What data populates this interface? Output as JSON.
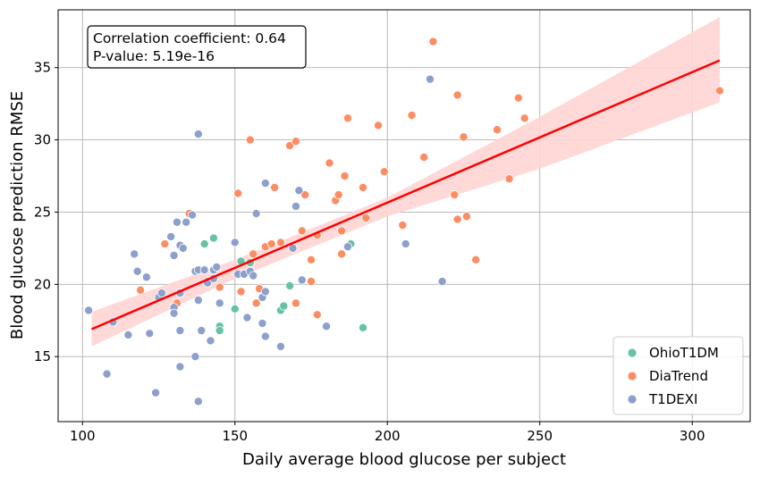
{
  "chart_data": {
    "type": "scatter",
    "xlabel": "Daily average blood glucose per subject",
    "ylabel": "Blood glucose prediction RMSE",
    "xlim": [
      92,
      319
    ],
    "ylim": [
      10.5,
      39.0
    ],
    "xticks": [
      100,
      150,
      200,
      250,
      300
    ],
    "yticks": [
      15,
      20,
      25,
      30,
      35
    ],
    "grid": true,
    "legend_position": "bottom-right",
    "annotation": {
      "line1": "Correlation coefficient: 0.64",
      "line2": "P-value: 5.19e-16"
    },
    "regression": {
      "color": "#ff0000",
      "band_color": "#ffd4d4",
      "x": [
        103,
        150,
        200,
        250,
        309
      ],
      "y": [
        16.9,
        21.0,
        25.3,
        29.8,
        35.5
      ],
      "lower": [
        15.7,
        20.4,
        24.7,
        28.0,
        32.6
      ],
      "upper": [
        18.1,
        21.7,
        26.0,
        31.6,
        38.5
      ]
    },
    "series": [
      {
        "name": "OhioT1DM",
        "color": "#66c2a5",
        "points": [
          [
            140,
            22.8
          ],
          [
            143,
            23.2
          ],
          [
            145,
            17.1
          ],
          [
            145,
            16.8
          ],
          [
            150,
            18.3
          ],
          [
            152,
            21.6
          ],
          [
            155,
            21.5
          ],
          [
            165,
            18.2
          ],
          [
            166,
            18.5
          ],
          [
            168,
            19.9
          ],
          [
            188,
            22.8
          ],
          [
            192,
            17.0
          ]
        ]
      },
      {
        "name": "DiaTrend",
        "color": "#fc8d62",
        "points": [
          [
            119,
            19.6
          ],
          [
            127,
            22.8
          ],
          [
            131,
            18.7
          ],
          [
            135,
            24.9
          ],
          [
            145,
            19.8
          ],
          [
            151,
            26.3
          ],
          [
            152,
            19.5
          ],
          [
            155,
            30.0
          ],
          [
            156,
            22.1
          ],
          [
            157,
            18.7
          ],
          [
            158,
            19.7
          ],
          [
            160,
            22.6
          ],
          [
            162,
            22.8
          ],
          [
            163,
            26.7
          ],
          [
            165,
            22.9
          ],
          [
            168,
            29.6
          ],
          [
            170,
            29.9
          ],
          [
            170,
            18.7
          ],
          [
            172,
            23.7
          ],
          [
            173,
            26.2
          ],
          [
            175,
            21.7
          ],
          [
            175,
            20.2
          ],
          [
            177,
            17.9
          ],
          [
            177,
            23.4
          ],
          [
            181,
            28.4
          ],
          [
            183,
            25.8
          ],
          [
            184,
            26.2
          ],
          [
            185,
            23.7
          ],
          [
            185,
            22.1
          ],
          [
            186,
            27.5
          ],
          [
            187,
            31.5
          ],
          [
            192,
            26.7
          ],
          [
            193,
            24.6
          ],
          [
            197,
            31.0
          ],
          [
            199,
            27.8
          ],
          [
            205,
            24.1
          ],
          [
            208,
            31.7
          ],
          [
            212,
            28.8
          ],
          [
            215,
            36.8
          ],
          [
            222,
            26.2
          ],
          [
            223,
            24.5
          ],
          [
            223,
            33.1
          ],
          [
            225,
            30.2
          ],
          [
            226,
            24.7
          ],
          [
            229,
            21.7
          ],
          [
            236,
            30.7
          ],
          [
            240,
            27.3
          ],
          [
            243,
            32.9
          ],
          [
            245,
            31.5
          ],
          [
            309,
            33.4
          ]
        ]
      },
      {
        "name": "T1DEXI",
        "color": "#8da0cb",
        "points": [
          [
            102,
            18.2
          ],
          [
            108,
            13.8
          ],
          [
            110,
            17.4
          ],
          [
            115,
            16.5
          ],
          [
            117,
            22.1
          ],
          [
            118,
            20.9
          ],
          [
            121,
            20.5
          ],
          [
            122,
            16.6
          ],
          [
            124,
            12.5
          ],
          [
            125,
            19.1
          ],
          [
            126,
            19.4
          ],
          [
            129,
            23.3
          ],
          [
            130,
            22.0
          ],
          [
            130,
            18.4
          ],
          [
            130,
            18.0
          ],
          [
            131,
            24.3
          ],
          [
            132,
            19.4
          ],
          [
            132,
            14.3
          ],
          [
            132,
            16.8
          ],
          [
            132,
            22.7
          ],
          [
            133,
            22.5
          ],
          [
            134,
            24.3
          ],
          [
            136,
            24.8
          ],
          [
            137,
            20.9
          ],
          [
            137,
            15.0
          ],
          [
            138,
            30.4
          ],
          [
            138,
            21.0
          ],
          [
            138,
            18.9
          ],
          [
            138,
            11.9
          ],
          [
            139,
            16.8
          ],
          [
            140,
            21.0
          ],
          [
            141,
            20.2
          ],
          [
            141,
            20.1
          ],
          [
            142,
            16.1
          ],
          [
            143,
            21.0
          ],
          [
            143,
            20.4
          ],
          [
            144,
            21.2
          ],
          [
            145,
            18.7
          ],
          [
            150,
            22.9
          ],
          [
            151,
            20.7
          ],
          [
            153,
            20.7
          ],
          [
            154,
            17.7
          ],
          [
            155,
            20.9
          ],
          [
            156,
            20.6
          ],
          [
            157,
            24.9
          ],
          [
            159,
            17.3
          ],
          [
            159,
            19.1
          ],
          [
            160,
            16.4
          ],
          [
            160,
            27.0
          ],
          [
            160,
            19.5
          ],
          [
            165,
            15.7
          ],
          [
            169,
            22.5
          ],
          [
            170,
            25.4
          ],
          [
            171,
            26.5
          ],
          [
            172,
            20.3
          ],
          [
            180,
            17.1
          ],
          [
            187,
            22.6
          ],
          [
            206,
            22.8
          ],
          [
            214,
            34.2
          ],
          [
            218,
            20.2
          ]
        ]
      }
    ]
  }
}
